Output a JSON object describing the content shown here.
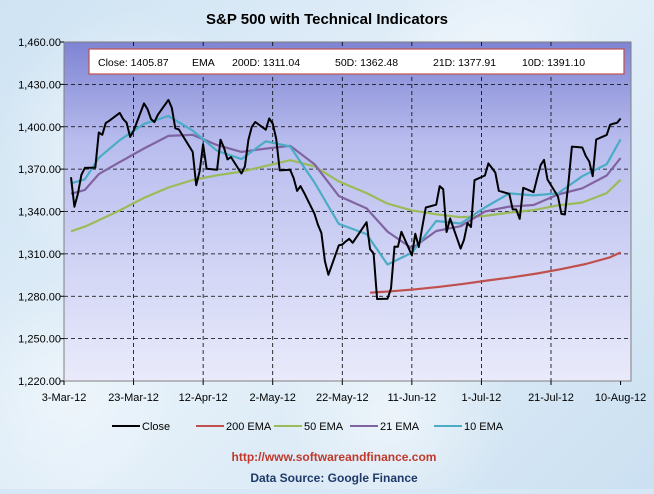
{
  "chart_data": {
    "type": "line",
    "title": "S&P 500 with Technical Indicators",
    "xlabel": "",
    "ylabel": "",
    "ylim": [
      1220,
      1460
    ],
    "yticks": [
      1220,
      1250,
      1280,
      1310,
      1340,
      1370,
      1400,
      1430,
      1460
    ],
    "ytick_labels": [
      "1,220.00",
      "1,250.00",
      "1,280.00",
      "1,310.00",
      "1,340.00",
      "1,370.00",
      "1,400.00",
      "1,430.00",
      "1,460.00"
    ],
    "xlim": [
      "2012-03-03",
      "2012-08-13"
    ],
    "xticks": [
      "2012-03-03",
      "2012-03-23",
      "2012-04-12",
      "2012-05-02",
      "2012-05-22",
      "2012-06-11",
      "2012-07-01",
      "2012-07-21",
      "2012-08-10"
    ],
    "xtick_labels": [
      "3-Mar-12",
      "23-Mar-12",
      "12-Apr-12",
      "2-May-12",
      "22-May-12",
      "11-Jun-12",
      "1-Jul-12",
      "21-Jul-12",
      "10-Aug-12"
    ],
    "grid": true,
    "legend_position": "bottom",
    "info_box": [
      "Close: 1405.87",
      "EMA",
      "200D: 1311.04",
      "50D: 1362.48",
      "21D: 1377.91",
      "10D: 1391.10"
    ],
    "url": "http://www.softwareandfinance.com",
    "source": "Data Source: Google Finance",
    "series": [
      {
        "name": "Close",
        "color": "#000000",
        "x": [
          "2012-03-05",
          "2012-03-06",
          "2012-03-07",
          "2012-03-08",
          "2012-03-09",
          "2012-03-12",
          "2012-03-13",
          "2012-03-14",
          "2012-03-15",
          "2012-03-16",
          "2012-03-19",
          "2012-03-20",
          "2012-03-21",
          "2012-03-22",
          "2012-03-23",
          "2012-03-26",
          "2012-03-27",
          "2012-03-28",
          "2012-03-29",
          "2012-03-30",
          "2012-04-02",
          "2012-04-03",
          "2012-04-04",
          "2012-04-05",
          "2012-04-09",
          "2012-04-10",
          "2012-04-11",
          "2012-04-12",
          "2012-04-13",
          "2012-04-16",
          "2012-04-17",
          "2012-04-18",
          "2012-04-19",
          "2012-04-20",
          "2012-04-23",
          "2012-04-24",
          "2012-04-25",
          "2012-04-26",
          "2012-04-27",
          "2012-04-30",
          "2012-05-01",
          "2012-05-02",
          "2012-05-03",
          "2012-05-04",
          "2012-05-07",
          "2012-05-08",
          "2012-05-09",
          "2012-05-10",
          "2012-05-11",
          "2012-05-14",
          "2012-05-15",
          "2012-05-16",
          "2012-05-17",
          "2012-05-18",
          "2012-05-21",
          "2012-05-22",
          "2012-05-23",
          "2012-05-24",
          "2012-05-25",
          "2012-05-29",
          "2012-05-30",
          "2012-05-31",
          "2012-06-01",
          "2012-06-04",
          "2012-06-05",
          "2012-06-06",
          "2012-06-07",
          "2012-06-08",
          "2012-06-11",
          "2012-06-12",
          "2012-06-13",
          "2012-06-14",
          "2012-06-15",
          "2012-06-18",
          "2012-06-19",
          "2012-06-20",
          "2012-06-21",
          "2012-06-22",
          "2012-06-25",
          "2012-06-26",
          "2012-06-27",
          "2012-06-28",
          "2012-06-29",
          "2012-07-02",
          "2012-07-03",
          "2012-07-05",
          "2012-07-06",
          "2012-07-09",
          "2012-07-10",
          "2012-07-11",
          "2012-07-12",
          "2012-07-13",
          "2012-07-16",
          "2012-07-17",
          "2012-07-18",
          "2012-07-19",
          "2012-07-20",
          "2012-07-23",
          "2012-07-24",
          "2012-07-25",
          "2012-07-26",
          "2012-07-27",
          "2012-07-30",
          "2012-07-31",
          "2012-08-01",
          "2012-08-02",
          "2012-08-03",
          "2012-08-06",
          "2012-08-07",
          "2012-08-08",
          "2012-08-09",
          "2012-08-10"
        ],
        "y": [
          1364.3,
          1343.4,
          1352.6,
          1366.0,
          1370.9,
          1371.1,
          1395.9,
          1394.3,
          1402.6,
          1404.2,
          1409.8,
          1405.5,
          1402.9,
          1392.8,
          1397.1,
          1416.5,
          1412.5,
          1405.5,
          1403.3,
          1408.5,
          1419.0,
          1413.4,
          1398.9,
          1398.1,
          1382.2,
          1358.6,
          1368.7,
          1387.6,
          1370.3,
          1369.6,
          1390.8,
          1385.1,
          1376.9,
          1378.5,
          1366.9,
          1371.9,
          1390.7,
          1399.98,
          1403.36,
          1397.91,
          1405.82,
          1402.31,
          1391.57,
          1369.1,
          1369.58,
          1363.72,
          1354.58,
          1357.99,
          1353.39,
          1338.35,
          1330.66,
          1324.8,
          1304.86,
          1295.22,
          1315.99,
          1316.63,
          1318.86,
          1320.68,
          1317.82,
          1332.42,
          1313.32,
          1310.33,
          1278.04,
          1278.18,
          1285.5,
          1315.13,
          1314.99,
          1325.66,
          1308.93,
          1324.18,
          1314.88,
          1329.1,
          1342.84,
          1344.78,
          1357.98,
          1355.69,
          1325.51,
          1335.02,
          1313.72,
          1319.99,
          1331.85,
          1329.04,
          1362.16,
          1365.51,
          1374.02,
          1367.58,
          1354.68,
          1352.46,
          1341.47,
          1341.45,
          1334.76,
          1356.78,
          1353.64,
          1363.67,
          1372.78,
          1376.51,
          1362.66,
          1350.52,
          1338.31,
          1337.89,
          1360.02,
          1385.97,
          1385.3,
          1379.32,
          1375.32,
          1365.0,
          1390.99,
          1394.23,
          1401.35,
          1402.22,
          1402.8,
          1405.87
        ]
      },
      {
        "name": "200 EMA",
        "color": "#c0504d",
        "x": [
          "2012-05-30",
          "2012-06-05",
          "2012-06-12",
          "2012-06-19",
          "2012-06-26",
          "2012-07-03",
          "2012-07-10",
          "2012-07-17",
          "2012-07-24",
          "2012-07-31",
          "2012-08-07",
          "2012-08-10"
        ],
        "y": [
          1282.5,
          1283.5,
          1284.9,
          1286.7,
          1288.8,
          1291.2,
          1293.5,
          1296.1,
          1299.2,
          1302.8,
          1307.6,
          1311.04
        ]
      },
      {
        "name": "50 EMA",
        "color": "#9bbb59",
        "x": [
          "2012-03-05",
          "2012-03-09",
          "2012-03-13",
          "2012-03-19",
          "2012-03-26",
          "2012-04-02",
          "2012-04-09",
          "2012-04-16",
          "2012-04-23",
          "2012-04-30",
          "2012-05-07",
          "2012-05-14",
          "2012-05-21",
          "2012-05-29",
          "2012-06-04",
          "2012-06-11",
          "2012-06-18",
          "2012-06-25",
          "2012-07-02",
          "2012-07-09",
          "2012-07-16",
          "2012-07-23",
          "2012-07-30",
          "2012-08-06",
          "2012-08-10"
        ],
        "y": [
          1326.0,
          1329.3,
          1333.8,
          1340.8,
          1349.6,
          1357.0,
          1362.3,
          1365.6,
          1368.2,
          1372.3,
          1376.3,
          1372.0,
          1361.3,
          1353.0,
          1345.6,
          1340.8,
          1338.0,
          1336.0,
          1336.9,
          1339.2,
          1341.0,
          1344.3,
          1346.4,
          1353.0,
          1362.48
        ]
      },
      {
        "name": "21 EMA",
        "color": "#8064a2",
        "x": [
          "2012-03-05",
          "2012-03-09",
          "2012-03-13",
          "2012-03-19",
          "2012-03-26",
          "2012-04-02",
          "2012-04-09",
          "2012-04-16",
          "2012-04-23",
          "2012-04-30",
          "2012-05-07",
          "2012-05-14",
          "2012-05-21",
          "2012-05-29",
          "2012-06-04",
          "2012-06-11",
          "2012-06-18",
          "2012-06-25",
          "2012-07-02",
          "2012-07-09",
          "2012-07-16",
          "2012-07-23",
          "2012-07-30",
          "2012-08-06",
          "2012-08-10"
        ],
        "y": [
          1352.5,
          1355.3,
          1366.5,
          1375.0,
          1384.6,
          1393.5,
          1394.3,
          1387.0,
          1382.2,
          1384.5,
          1386.5,
          1373.5,
          1351.0,
          1342.2,
          1325.8,
          1313.9,
          1326.2,
          1329.6,
          1340.0,
          1343.5,
          1344.6,
          1352.0,
          1356.4,
          1365.5,
          1377.91
        ]
      },
      {
        "name": "10 EMA",
        "color": "#4bacc6",
        "x": [
          "2012-03-05",
          "2012-03-09",
          "2012-03-13",
          "2012-03-19",
          "2012-03-26",
          "2012-04-02",
          "2012-04-09",
          "2012-04-16",
          "2012-04-23",
          "2012-04-30",
          "2012-05-07",
          "2012-05-14",
          "2012-05-21",
          "2012-05-29",
          "2012-06-04",
          "2012-06-11",
          "2012-06-18",
          "2012-06-25",
          "2012-07-02",
          "2012-07-09",
          "2012-07-16",
          "2012-07-23",
          "2012-07-30",
          "2012-08-06",
          "2012-08-10"
        ],
        "y": [
          1360.0,
          1362.8,
          1378.0,
          1390.5,
          1402.0,
          1407.6,
          1397.3,
          1383.0,
          1377.1,
          1389.7,
          1386.0,
          1360.5,
          1331.2,
          1324.0,
          1302.5,
          1310.8,
          1333.3,
          1331.5,
          1342.8,
          1352.8,
          1351.4,
          1352.8,
          1365.0,
          1373.5,
          1391.1
        ]
      }
    ]
  }
}
